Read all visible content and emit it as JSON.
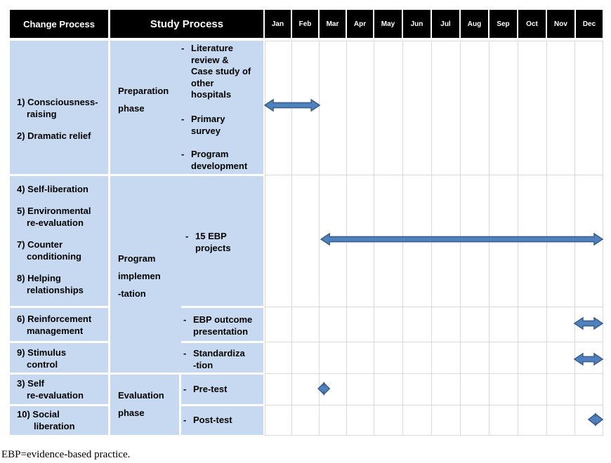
{
  "header": {
    "change_process": "Change Process",
    "study_process": "Study Process",
    "months": [
      "Jan",
      "Feb",
      "Mar",
      "Apr",
      "May",
      "Jun",
      "Jul",
      "Aug",
      "Sep",
      "Oct",
      "Nov",
      "Dec"
    ]
  },
  "change_stages": [
    {
      "id": "a",
      "lines": [
        "1) Consciousness-",
        "raising",
        "",
        "2) Dramatic relief"
      ]
    },
    {
      "id": "b",
      "lines": [
        "4) Self-liberation",
        "",
        "5) Environmental",
        "re-evaluation",
        "",
        "7) Counter",
        "conditioning",
        "",
        "8) Helping",
        "relationships"
      ]
    },
    {
      "id": "c",
      "lines": [
        "6) Reinforcement",
        "management"
      ]
    },
    {
      "id": "d",
      "lines": [
        "9) Stimulus",
        "control"
      ]
    },
    {
      "id": "e",
      "lines": [
        "3) Self",
        "re-evaluation"
      ]
    },
    {
      "id": "f",
      "lines": [
        "10) Social",
        "liberation"
      ]
    }
  ],
  "phases": [
    {
      "id": "prep",
      "lines": [
        "Preparation",
        "",
        "phase"
      ]
    },
    {
      "id": "impl",
      "lines": [
        "Program",
        "",
        "implemen",
        "",
        "-tation"
      ]
    },
    {
      "id": "eval",
      "lines": [
        "Evaluation",
        "",
        "phase"
      ]
    }
  ],
  "activities": [
    {
      "id": "lit",
      "marker": "-",
      "text": "Literature\nreview &\nCase study of\nother\nhospitals"
    },
    {
      "id": "survey",
      "marker": "-",
      "text": "Primary\nsurvey"
    },
    {
      "id": "dev",
      "marker": "-",
      "text": "Program\ndevelopment"
    },
    {
      "id": "ebp",
      "marker": "-",
      "text": "15 EBP\nprojects"
    },
    {
      "id": "outcome",
      "marker": "-",
      "text": "EBP outcome\npresentation"
    },
    {
      "id": "std",
      "marker": "-",
      "text": "Standardiza\n-tion"
    },
    {
      "id": "pre",
      "marker": "-",
      "text": "Pre-test"
    },
    {
      "id": "post",
      "marker": "-",
      "text": "Post-test"
    }
  ],
  "timeline": [
    {
      "activity": "Preparation phase",
      "start_month": 1,
      "end_month": 2.95
    },
    {
      "activity": "15 EBP projects",
      "start_month": 3,
      "end_month": 13
    },
    {
      "activity": "EBP outcome presentation",
      "start_month": 12,
      "end_month": 13
    },
    {
      "activity": "Standardiza-tion",
      "start_month": 12,
      "end_month": 13
    },
    {
      "activity": "Pre-test",
      "start_month": 2.9,
      "end_month": 3.3
    },
    {
      "activity": "Post-test",
      "start_month": 12.5,
      "end_month": 13
    }
  ],
  "colors": {
    "header_bg": "#000000",
    "cell_bg": "#c6d9f1",
    "arrow_fill": "#4f81bd",
    "arrow_stroke": "#385d8a",
    "grid_line": "#d9d9d9"
  },
  "footnote": "EBP=evidence-based practice."
}
